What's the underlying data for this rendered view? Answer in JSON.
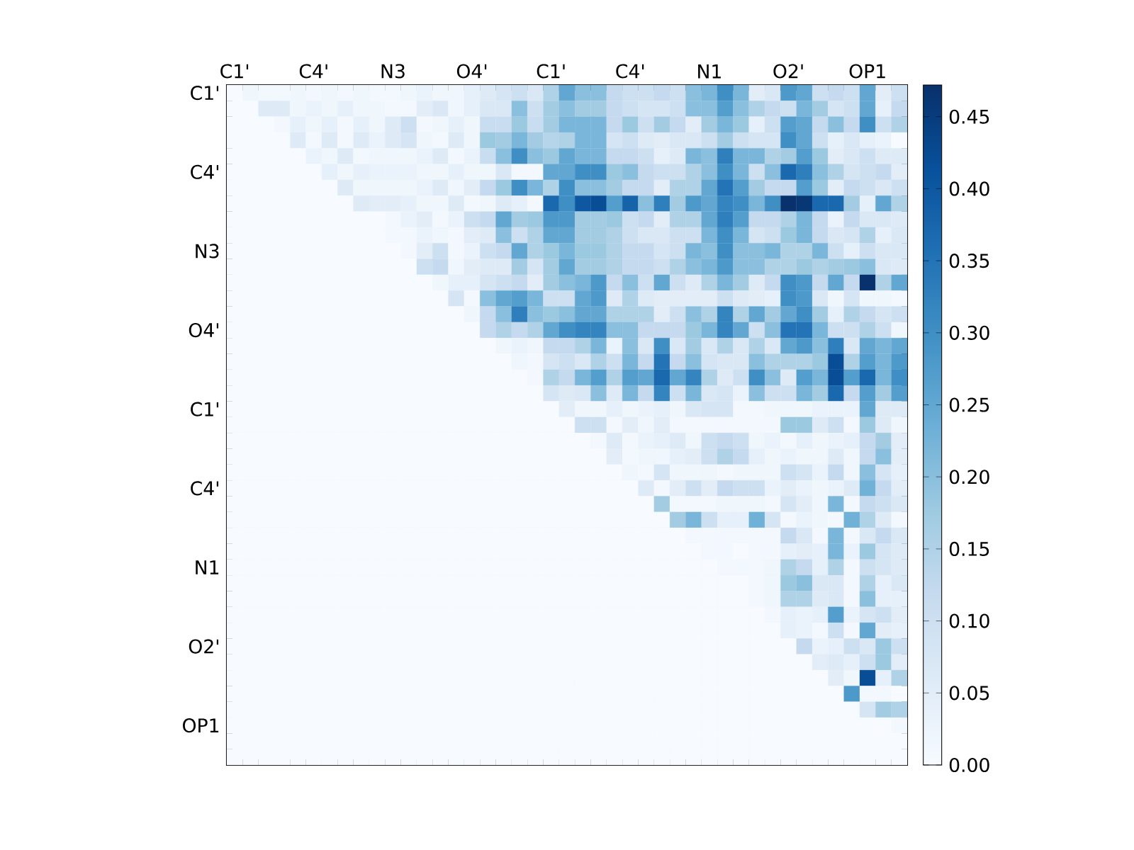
{
  "chart_data": {
    "type": "heatmap",
    "categories": [
      "C1'",
      null,
      null,
      null,
      null,
      "C4'",
      null,
      null,
      null,
      null,
      "N3",
      null,
      null,
      null,
      null,
      "O4'",
      null,
      null,
      null,
      null,
      "C1'",
      null,
      null,
      null,
      null,
      "C4'",
      null,
      null,
      null,
      null,
      "N1",
      null,
      null,
      null,
      null,
      "O2'",
      null,
      null,
      null,
      null,
      "OP1",
      null,
      null
    ],
    "y_categories": [
      "C1'",
      null,
      null,
      null,
      null,
      "C4'",
      null,
      null,
      null,
      null,
      "N3",
      null,
      null,
      null,
      null,
      "O4'",
      null,
      null,
      null,
      null,
      "C1'",
      null,
      null,
      null,
      null,
      "C4'",
      null,
      null,
      null,
      null,
      "N1",
      null,
      null,
      null,
      null,
      "O2'",
      null,
      null,
      null,
      null,
      "OP1",
      null,
      null
    ],
    "cells": [
      [
        0,
        0.02,
        0.01,
        0.01,
        0.02,
        0.01,
        0.02,
        0.01,
        0.02,
        0.01,
        0.01,
        0.02,
        0.03,
        0.02,
        0.02,
        0.04,
        0.06,
        0.08,
        0.1,
        0.07,
        0.15,
        0.25,
        0.2,
        0.2,
        0.12,
        0.1,
        0.1,
        0.12,
        0.1,
        0.2,
        0.22,
        0.3,
        0.22,
        0.05,
        0.07,
        0.28,
        0.25,
        0.1,
        0.12,
        0.1,
        0.25,
        0.05,
        0.1
      ],
      [
        0,
        0,
        0.06,
        0.06,
        0.02,
        0.03,
        0.02,
        0.04,
        0.02,
        0.02,
        0.01,
        0.01,
        0.05,
        0.07,
        0.02,
        0.04,
        0.07,
        0.07,
        0.2,
        0.1,
        0.17,
        0.2,
        0.17,
        0.17,
        0.12,
        0.1,
        0.08,
        0.08,
        0.1,
        0.2,
        0.2,
        0.27,
        0.2,
        0.15,
        0.12,
        0.1,
        0.22,
        0.17,
        0.08,
        0.1,
        0.25,
        0.04,
        0.12
      ],
      [
        0,
        0,
        0,
        0.01,
        0.04,
        0.02,
        0.04,
        0.01,
        0.04,
        0.02,
        0.06,
        0.1,
        0.01,
        0.02,
        0.04,
        0.02,
        0.11,
        0.11,
        0.18,
        0.11,
        0.17,
        0.22,
        0.22,
        0.22,
        0.12,
        0.18,
        0.1,
        0.17,
        0.12,
        0.05,
        0.17,
        0.22,
        0.18,
        0.04,
        0.1,
        0.27,
        0.25,
        0.12,
        0.2,
        0.12,
        0.3,
        0.1,
        0.15
      ],
      [
        0,
        0,
        0,
        0,
        0.06,
        0.01,
        0.06,
        0.01,
        0.06,
        0.03,
        0.06,
        0.08,
        0.02,
        0.01,
        0.06,
        0.02,
        0.18,
        0.17,
        0.22,
        0.17,
        0.14,
        0.15,
        0.22,
        0.22,
        0.08,
        0.1,
        0.06,
        0.05,
        0.07,
        0.07,
        0.1,
        0.17,
        0.1,
        0.08,
        0.08,
        0.3,
        0.25,
        0.1,
        0.04,
        0.07,
        0.04,
        0.03,
        0
      ],
      [
        0,
        0,
        0,
        0,
        0,
        0.03,
        0.02,
        0.06,
        0.01,
        0.02,
        0.02,
        0.02,
        0.03,
        0.06,
        0.01,
        0.03,
        0.11,
        0.2,
        0.3,
        0.2,
        0.18,
        0.25,
        0.22,
        0.22,
        0.12,
        0.12,
        0.1,
        0.04,
        0.06,
        0.22,
        0.2,
        0.33,
        0.22,
        0.22,
        0.15,
        0.17,
        0.27,
        0.18,
        0.05,
        0.07,
        0.1,
        0.06,
        0.06
      ],
      [
        0,
        0,
        0,
        0,
        0,
        0,
        0.04,
        0.02,
        0.04,
        0.03,
        0.03,
        0.03,
        0.02,
        0.02,
        0.04,
        0.02,
        0.02,
        0.07,
        0.01,
        0.01,
        0.25,
        0.25,
        0.3,
        0.3,
        0.18,
        0.2,
        0.12,
        0.1,
        0.1,
        0.15,
        0.2,
        0.3,
        0.22,
        0.1,
        0.2,
        0.37,
        0.33,
        0.2,
        0.15,
        0.08,
        0.1,
        0.12,
        0.05
      ],
      [
        0,
        0,
        0,
        0,
        0,
        0,
        0,
        0.06,
        0.02,
        0.02,
        0.02,
        0.02,
        0.03,
        0.06,
        0.02,
        0.05,
        0.12,
        0.18,
        0.3,
        0.22,
        0.15,
        0.3,
        0.2,
        0.2,
        0.17,
        0.12,
        0.12,
        0.05,
        0.15,
        0.15,
        0.25,
        0.35,
        0.27,
        0.17,
        0.12,
        0.12,
        0.27,
        0.18,
        0.05,
        0.12,
        0.1,
        0.07,
        0.1
      ],
      [
        0,
        0,
        0,
        0,
        0,
        0,
        0,
        0,
        0.06,
        0.05,
        0.05,
        0.04,
        0.02,
        0.02,
        0.06,
        0.01,
        0.02,
        0.06,
        0.04,
        0.01,
        0.37,
        0.3,
        0.4,
        0.42,
        0.27,
        0.38,
        0.2,
        0.33,
        0.17,
        0.28,
        0.25,
        0.32,
        0.3,
        0.22,
        0.3,
        0.47,
        0.46,
        0.37,
        0.37,
        0.17,
        0.04,
        0.25,
        0.15
      ],
      [
        0,
        0,
        0,
        0,
        0,
        0,
        0,
        0,
        0,
        0,
        0.01,
        0.03,
        0.05,
        0.01,
        0.03,
        0.1,
        0.12,
        0.25,
        0.17,
        0.18,
        0.28,
        0.28,
        0.17,
        0.17,
        0.18,
        0.1,
        0.12,
        0.05,
        0.15,
        0.15,
        0.25,
        0.33,
        0.27,
        0.12,
        0.12,
        0.15,
        0.22,
        0.12,
        0.03,
        0.12,
        0.07,
        0.07,
        0.06
      ],
      [
        0,
        0,
        0,
        0,
        0,
        0,
        0,
        0,
        0,
        0,
        0.01,
        0.01,
        0.03,
        0.02,
        0.01,
        0.05,
        0.06,
        0.2,
        0.1,
        0.15,
        0.25,
        0.25,
        0.17,
        0.17,
        0.15,
        0.1,
        0.07,
        0.07,
        0.1,
        0.1,
        0.22,
        0.3,
        0.22,
        0.08,
        0.1,
        0.18,
        0.22,
        0.12,
        0.07,
        0.08,
        0.15,
        0.04,
        0.07
      ],
      [
        0,
        0,
        0,
        0,
        0,
        0,
        0,
        0,
        0,
        0,
        0,
        0.01,
        0.05,
        0.1,
        0.01,
        0.03,
        0.1,
        0.12,
        0.25,
        0.15,
        0.18,
        0.22,
        0.18,
        0.18,
        0.15,
        0.12,
        0.12,
        0.08,
        0.1,
        0.22,
        0.2,
        0.3,
        0.2,
        0.2,
        0.22,
        0.15,
        0.15,
        0.22,
        0.1,
        0.04,
        0.1,
        0.07,
        0.07
      ],
      [
        0,
        0,
        0,
        0,
        0,
        0,
        0,
        0,
        0,
        0,
        0,
        0,
        0.1,
        0.12,
        0.02,
        0.05,
        0.06,
        0.06,
        0.17,
        0.08,
        0.17,
        0.25,
        0.17,
        0.17,
        0.15,
        0.12,
        0.12,
        0.1,
        0.15,
        0.2,
        0.22,
        0.28,
        0.2,
        0.2,
        0.15,
        0.15,
        0.18,
        0.15,
        0.17,
        0.18,
        0.2,
        0.07,
        0.06
      ],
      [
        0,
        0,
        0,
        0,
        0,
        0,
        0,
        0,
        0,
        0,
        0,
        0,
        0,
        0.02,
        0.04,
        0.04,
        0.08,
        0.1,
        0.12,
        0.05,
        0.17,
        0.2,
        0.22,
        0.28,
        0.12,
        0.2,
        0.1,
        0.25,
        0.1,
        0.06,
        0.15,
        0.22,
        0.17,
        0.06,
        0.12,
        0.3,
        0.28,
        0.12,
        0.25,
        0.12,
        0.47,
        0.15,
        0.25
      ],
      [
        0,
        0,
        0,
        0,
        0,
        0,
        0,
        0,
        0,
        0,
        0,
        0,
        0,
        0,
        0.08,
        0.01,
        0.2,
        0.25,
        0.27,
        0.22,
        0.1,
        0.1,
        0.25,
        0.28,
        0.06,
        0.15,
        0.06,
        0.05,
        0.05,
        0.05,
        0.05,
        0.1,
        0.06,
        0.05,
        0.04,
        0.3,
        0.28,
        0.07,
        0.02,
        0.08,
        0.02,
        0.02,
        0.01
      ],
      [
        0,
        0,
        0,
        0,
        0,
        0,
        0,
        0,
        0,
        0,
        0,
        0,
        0,
        0,
        0,
        0.02,
        0.12,
        0.2,
        0.33,
        0.2,
        0.18,
        0.2,
        0.25,
        0.25,
        0.15,
        0.15,
        0.15,
        0.05,
        0.1,
        0.2,
        0.15,
        0.32,
        0.15,
        0.25,
        0.17,
        0.25,
        0.3,
        0.17,
        0.04,
        0.15,
        0.12,
        0.08,
        0.1
      ],
      [
        0,
        0,
        0,
        0,
        0,
        0,
        0,
        0,
        0,
        0,
        0,
        0,
        0,
        0,
        0,
        0,
        0.12,
        0.15,
        0.12,
        0.15,
        0.25,
        0.3,
        0.32,
        0.32,
        0.2,
        0.2,
        0.12,
        0.12,
        0.12,
        0.18,
        0.22,
        0.32,
        0.25,
        0.1,
        0.2,
        0.35,
        0.35,
        0.22,
        0.1,
        0.1,
        0.15,
        0.1,
        0.02
      ],
      [
        0,
        0,
        0,
        0,
        0,
        0,
        0,
        0,
        0,
        0,
        0,
        0,
        0,
        0,
        0,
        0,
        0,
        0.02,
        0.03,
        0.02,
        0.12,
        0.12,
        0.15,
        0.22,
        0.03,
        0.2,
        0.07,
        0.3,
        0.07,
        0.17,
        0.07,
        0.15,
        0.07,
        0.15,
        0.07,
        0.25,
        0.28,
        0.2,
        0.33,
        0.07,
        0.25,
        0.22,
        0.25
      ],
      [
        0,
        0,
        0,
        0,
        0,
        0,
        0,
        0,
        0,
        0,
        0,
        0,
        0,
        0,
        0,
        0,
        0,
        0,
        0.02,
        0.01,
        0.08,
        0.1,
        0.07,
        0.15,
        0.1,
        0.22,
        0.12,
        0.35,
        0.12,
        0.2,
        0.08,
        0.07,
        0.07,
        0.2,
        0.15,
        0.15,
        0.15,
        0.18,
        0.42,
        0.15,
        0.27,
        0.22,
        0.28
      ],
      [
        0,
        0,
        0,
        0,
        0,
        0,
        0,
        0,
        0,
        0,
        0,
        0,
        0,
        0,
        0,
        0,
        0,
        0,
        0,
        0.01,
        0.15,
        0.12,
        0.22,
        0.27,
        0.15,
        0.27,
        0.25,
        0.37,
        0.25,
        0.32,
        0.15,
        0.06,
        0.1,
        0.3,
        0.2,
        0.06,
        0.27,
        0.22,
        0.42,
        0.27,
        0.37,
        0.22,
        0.3
      ],
      [
        0,
        0,
        0,
        0,
        0,
        0,
        0,
        0,
        0,
        0,
        0,
        0,
        0,
        0,
        0,
        0,
        0,
        0,
        0,
        0,
        0.08,
        0.06,
        0.07,
        0.2,
        0.06,
        0.22,
        0.12,
        0.32,
        0.1,
        0.22,
        0.07,
        0.08,
        0.03,
        0.2,
        0.1,
        0.1,
        0.22,
        0.17,
        0.37,
        0.12,
        0.27,
        0.17,
        0.27
      ],
      [
        0,
        0,
        0,
        0,
        0,
        0,
        0,
        0,
        0,
        0,
        0,
        0,
        0,
        0,
        0,
        0,
        0,
        0,
        0,
        0,
        0,
        0.05,
        0.02,
        0.02,
        0.04,
        0.02,
        0.03,
        0.04,
        0.02,
        0.07,
        0.08,
        0.08,
        0.01,
        0.01,
        0.02,
        0.02,
        0.02,
        0.03,
        0.03,
        0.03,
        0.25,
        0.06,
        0.06
      ],
      [
        0,
        0,
        0,
        0,
        0,
        0,
        0,
        0,
        0,
        0,
        0,
        0,
        0,
        0,
        0,
        0,
        0,
        0,
        0,
        0,
        0,
        0,
        0.1,
        0.1,
        0.01,
        0.05,
        0.02,
        0.05,
        0.01,
        0.01,
        0.01,
        0.01,
        0.01,
        0.01,
        0.01,
        0.18,
        0.18,
        0.06,
        0.1,
        0.01,
        0.18,
        0.06,
        0.02
      ],
      [
        0,
        0,
        0,
        0,
        0,
        0,
        0,
        0,
        0,
        0,
        0,
        0,
        0,
        0,
        0,
        0,
        0,
        0,
        0,
        0,
        0,
        0,
        0,
        0.01,
        0.06,
        0.01,
        0.03,
        0.04,
        0.06,
        0.02,
        0.1,
        0.12,
        0.1,
        0.02,
        0.03,
        0.01,
        0.04,
        0.02,
        0.03,
        0.04,
        0.12,
        0.17,
        0.05
      ],
      [
        0,
        0,
        0,
        0,
        0,
        0,
        0,
        0,
        0,
        0,
        0,
        0,
        0,
        0,
        0,
        0,
        0,
        0,
        0,
        0,
        0,
        0,
        0,
        0,
        0.05,
        0.01,
        0.02,
        0.02,
        0.04,
        0.05,
        0.1,
        0.15,
        0.12,
        0.04,
        0.02,
        0.03,
        0.02,
        0.02,
        0.06,
        0.02,
        0.12,
        0.2,
        0.05
      ],
      [
        0,
        0,
        0,
        0,
        0,
        0,
        0,
        0,
        0,
        0,
        0,
        0,
        0,
        0,
        0,
        0,
        0,
        0,
        0,
        0,
        0,
        0,
        0,
        0,
        0,
        0.02,
        0.01,
        0.08,
        0.02,
        0.02,
        0.02,
        0.01,
        0.02,
        0.02,
        0.02,
        0.1,
        0.08,
        0.03,
        0.12,
        0.02,
        0.2,
        0.08,
        0.04
      ],
      [
        0,
        0,
        0,
        0,
        0,
        0,
        0,
        0,
        0,
        0,
        0,
        0,
        0,
        0,
        0,
        0,
        0,
        0,
        0,
        0,
        0,
        0,
        0,
        0,
        0,
        0,
        0.06,
        0.01,
        0.05,
        0.1,
        0.05,
        0.12,
        0.1,
        0.1,
        0.03,
        0.05,
        0.03,
        0.02,
        0.03,
        0.06,
        0.23,
        0.12,
        0.05
      ],
      [
        0,
        0,
        0,
        0,
        0,
        0,
        0,
        0,
        0,
        0,
        0,
        0,
        0,
        0,
        0,
        0,
        0,
        0,
        0,
        0,
        0,
        0,
        0,
        0,
        0,
        0,
        0,
        0.17,
        0.01,
        0.01,
        0.01,
        0.02,
        0.02,
        0.02,
        0.01,
        0.08,
        0.05,
        0.02,
        0.22,
        0.01,
        0.12,
        0.1,
        0.07
      ],
      [
        0,
        0,
        0,
        0,
        0,
        0,
        0,
        0,
        0,
        0,
        0,
        0,
        0,
        0,
        0,
        0,
        0,
        0,
        0,
        0,
        0,
        0,
        0,
        0,
        0,
        0,
        0,
        0,
        0.17,
        0.22,
        0.1,
        0.04,
        0.04,
        0.23,
        0.08,
        0.01,
        0.03,
        0.02,
        0.01,
        0.23,
        0.15,
        0.06,
        0.01
      ],
      [
        0,
        0,
        0,
        0,
        0,
        0,
        0,
        0,
        0,
        0,
        0,
        0,
        0,
        0,
        0,
        0,
        0,
        0,
        0,
        0,
        0,
        0,
        0,
        0,
        0,
        0,
        0,
        0,
        0,
        0.01,
        0.01,
        0.01,
        0.01,
        0.01,
        0.01,
        0.12,
        0.07,
        0.01,
        0.22,
        0.01,
        0.07,
        0.12,
        0.07
      ],
      [
        0,
        0,
        0,
        0,
        0,
        0,
        0,
        0,
        0,
        0,
        0,
        0,
        0,
        0,
        0,
        0,
        0,
        0,
        0,
        0,
        0,
        0,
        0,
        0,
        0,
        0,
        0,
        0,
        0,
        0,
        0.01,
        0.01,
        0,
        0.01,
        0.01,
        0.04,
        0.05,
        0.04,
        0.22,
        0.03,
        0.18,
        0.08,
        0.06
      ],
      [
        0,
        0,
        0,
        0,
        0,
        0,
        0,
        0,
        0,
        0,
        0,
        0,
        0,
        0,
        0,
        0,
        0,
        0,
        0,
        0,
        0,
        0,
        0,
        0,
        0,
        0,
        0,
        0,
        0,
        0,
        0,
        0.01,
        0.01,
        0.01,
        0.02,
        0.15,
        0.12,
        0.04,
        0.15,
        0.01,
        0.1,
        0.08,
        0.06
      ],
      [
        0,
        0,
        0,
        0,
        0,
        0,
        0,
        0,
        0,
        0,
        0,
        0,
        0,
        0,
        0,
        0,
        0,
        0,
        0,
        0,
        0,
        0,
        0,
        0,
        0,
        0,
        0,
        0,
        0,
        0,
        0,
        0,
        0,
        0.01,
        0.02,
        0.18,
        0.2,
        0.07,
        0.07,
        0.01,
        0.15,
        0.04,
        0.07
      ],
      [
        0,
        0,
        0,
        0,
        0,
        0,
        0,
        0,
        0,
        0,
        0,
        0,
        0,
        0,
        0,
        0,
        0,
        0,
        0,
        0,
        0,
        0,
        0,
        0,
        0,
        0,
        0,
        0,
        0,
        0,
        0,
        0,
        0,
        0.01,
        0.02,
        0.15,
        0.15,
        0.06,
        0.07,
        0.01,
        0.2,
        0.04,
        0.04
      ],
      [
        0,
        0,
        0,
        0,
        0,
        0,
        0,
        0,
        0,
        0,
        0,
        0,
        0,
        0,
        0,
        0,
        0,
        0,
        0,
        0,
        0,
        0,
        0,
        0,
        0,
        0,
        0,
        0,
        0,
        0,
        0,
        0,
        0,
        0,
        0.01,
        0.04,
        0.03,
        0.04,
        0.27,
        0.03,
        0.08,
        0.1,
        0.05
      ],
      [
        0,
        0,
        0,
        0,
        0,
        0,
        0,
        0,
        0,
        0,
        0,
        0,
        0,
        0,
        0,
        0,
        0,
        0,
        0,
        0,
        0,
        0,
        0,
        0,
        0,
        0,
        0,
        0,
        0,
        0,
        0,
        0,
        0,
        0,
        0,
        0.04,
        0.03,
        0.01,
        0.1,
        0.01,
        0.25,
        0.05,
        0.04
      ],
      [
        0,
        0,
        0,
        0,
        0,
        0,
        0,
        0,
        0,
        0,
        0,
        0,
        0,
        0,
        0,
        0,
        0,
        0,
        0,
        0,
        0,
        0,
        0,
        0,
        0,
        0,
        0,
        0,
        0,
        0,
        0,
        0,
        0,
        0,
        0,
        0,
        0.12,
        0.03,
        0.04,
        0.1,
        0.07,
        0.18,
        0.1
      ],
      [
        0,
        0,
        0,
        0,
        0,
        0,
        0,
        0,
        0,
        0,
        0,
        0,
        0,
        0,
        0,
        0,
        0,
        0,
        0,
        0,
        0,
        0,
        0,
        0,
        0,
        0,
        0,
        0,
        0,
        0,
        0,
        0,
        0,
        0,
        0,
        0,
        0,
        0.05,
        0.06,
        0.04,
        0.1,
        0.18,
        0.05
      ],
      [
        0,
        0,
        0,
        0,
        0,
        0,
        0,
        0,
        0,
        0,
        0,
        0,
        0,
        0,
        0,
        0,
        0,
        0,
        0,
        0,
        0,
        0,
        0,
        0,
        0,
        0,
        0,
        0,
        0,
        0,
        0,
        0,
        0,
        0,
        0,
        0,
        0,
        0,
        0.05,
        0.02,
        0.42,
        0.04,
        0.15
      ],
      [
        0,
        0,
        0,
        0,
        0,
        0,
        0,
        0,
        0,
        0,
        0,
        0,
        0,
        0,
        0,
        0,
        0,
        0,
        0,
        0,
        0,
        0,
        0,
        0,
        0,
        0,
        0,
        0,
        0,
        0,
        0,
        0,
        0,
        0,
        0,
        0,
        0,
        0,
        0,
        0.28,
        0.01,
        0.01,
        0
      ],
      [
        0,
        0,
        0,
        0,
        0,
        0,
        0,
        0,
        0,
        0,
        0,
        0,
        0,
        0,
        0,
        0,
        0,
        0,
        0,
        0,
        0,
        0,
        0,
        0,
        0,
        0,
        0,
        0,
        0,
        0,
        0,
        0,
        0,
        0,
        0,
        0,
        0,
        0,
        0,
        0,
        0.08,
        0.17,
        0.15
      ],
      [
        0,
        0,
        0,
        0,
        0,
        0,
        0,
        0,
        0,
        0,
        0,
        0,
        0,
        0,
        0,
        0,
        0,
        0,
        0,
        0,
        0,
        0,
        0,
        0,
        0,
        0,
        0,
        0,
        0,
        0,
        0,
        0,
        0,
        0,
        0,
        0,
        0,
        0,
        0,
        0,
        0,
        0,
        0.01
      ],
      [
        0,
        0,
        0,
        0,
        0,
        0,
        0,
        0,
        0,
        0,
        0,
        0,
        0,
        0,
        0,
        0,
        0,
        0,
        0,
        0,
        0,
        0,
        0,
        0,
        0,
        0,
        0,
        0,
        0,
        0,
        0,
        0,
        0,
        0,
        0,
        0,
        0,
        0,
        0,
        0,
        0,
        0,
        0
      ],
      [
        0,
        0,
        0,
        0,
        0,
        0,
        0,
        0,
        0,
        0,
        0,
        0,
        0,
        0,
        0,
        0,
        0,
        0,
        0,
        0,
        0,
        0,
        0,
        0,
        0,
        0,
        0,
        0,
        0,
        0,
        0,
        0,
        0,
        0,
        0,
        0,
        0,
        0,
        0,
        0,
        0,
        0,
        0
      ]
    ],
    "clim": [
      0,
      0.472
    ],
    "cticks": [
      {
        "value": 0,
        "label": "0.00"
      },
      {
        "value": 0.05,
        "label": "0.05"
      },
      {
        "value": 0.1,
        "label": "0.10"
      },
      {
        "value": 0.15,
        "label": "0.15"
      },
      {
        "value": 0.2,
        "label": "0.20"
      },
      {
        "value": 0.25,
        "label": "0.25"
      },
      {
        "value": 0.3,
        "label": "0.30"
      },
      {
        "value": 0.35,
        "label": "0.35"
      },
      {
        "value": 0.4,
        "label": "0.40"
      },
      {
        "value": 0.45,
        "label": "0.45"
      }
    ]
  }
}
